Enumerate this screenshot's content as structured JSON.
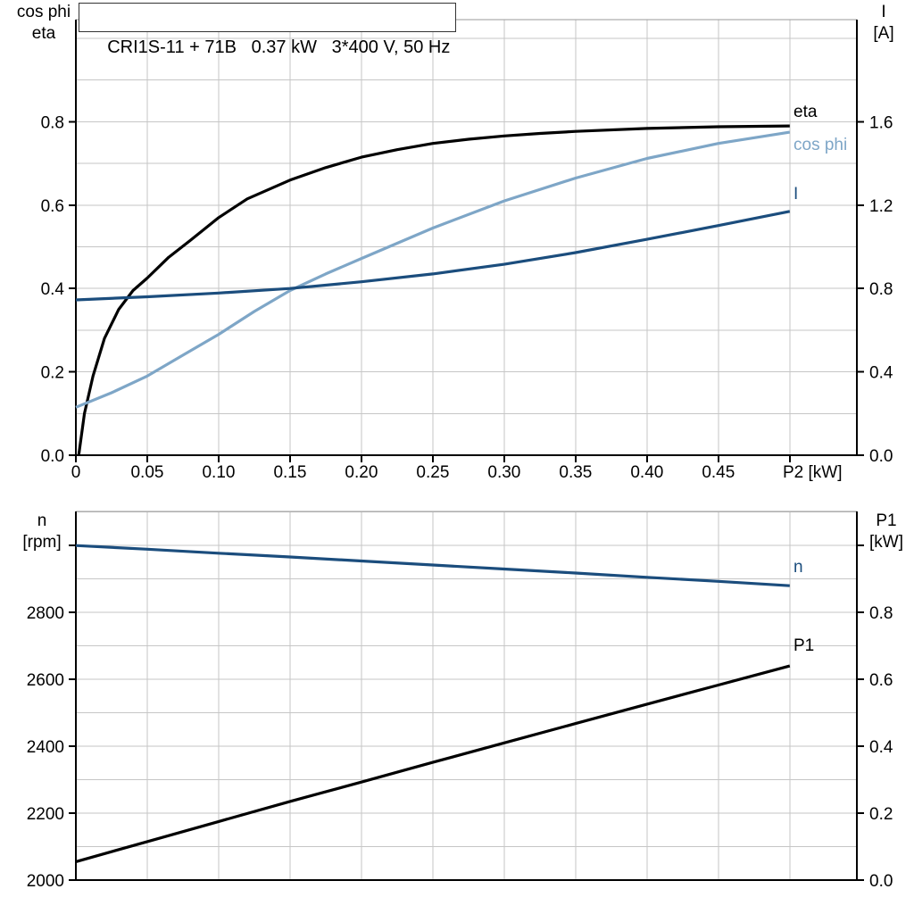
{
  "title": "CRI1S-11 + 71B   0.37 kW   3*400 V, 50 Hz",
  "colors": {
    "black": "#000000",
    "dark_blue": "#1b4d7d",
    "light_blue": "#7ea6c7",
    "grid": "#c6c6c6",
    "frame": "#999999"
  },
  "axis_headers": {
    "top_left": {
      "line1": "cos phi",
      "line2": "eta"
    },
    "top_right": {
      "line1": "I",
      "line2": "[A]"
    },
    "bottom_left": {
      "line1": "n",
      "line2": "[rpm]"
    },
    "bottom_right": {
      "line1": "P1",
      "line2": "[kW]"
    }
  },
  "chart_data": [
    {
      "type": "line",
      "name": "motor-electrical-curves",
      "title": "CRI1S-11 + 71B   0.37 kW   3*400 V, 50 Hz",
      "xlabel": "P2 [kW]",
      "x_axis": {
        "min": 0,
        "max": 0.547,
        "grid": true
      },
      "x_ticks": [
        {
          "v": 0.0,
          "label": "0"
        },
        {
          "v": 0.05,
          "label": "0.05"
        },
        {
          "v": 0.1,
          "label": "0.10"
        },
        {
          "v": 0.15,
          "label": "0.15"
        },
        {
          "v": 0.2,
          "label": "0.20"
        },
        {
          "v": 0.25,
          "label": "0.25"
        },
        {
          "v": 0.3,
          "label": "0.30"
        },
        {
          "v": 0.35,
          "label": "0.35"
        },
        {
          "v": 0.4,
          "label": "0.40"
        },
        {
          "v": 0.45,
          "label": "0.45"
        },
        {
          "v": 0.5,
          "label": ""
        }
      ],
      "left_axis": {
        "title": "cos phi / eta",
        "min": 0,
        "max": 1.045,
        "grid_step": 0.1,
        "grid_max": 1.0,
        "major_ticks": [
          {
            "v": 0.0,
            "label": "0.0"
          },
          {
            "v": 0.2,
            "label": "0.2"
          },
          {
            "v": 0.4,
            "label": "0.4"
          },
          {
            "v": 0.6,
            "label": "0.6"
          },
          {
            "v": 0.8,
            "label": "0.8"
          }
        ]
      },
      "right_axis": {
        "title": "I [A]",
        "min": 0,
        "max": 2.09,
        "major_ticks": [
          {
            "v": 0.0,
            "label": "0.0"
          },
          {
            "v": 0.4,
            "label": "0.4"
          },
          {
            "v": 0.8,
            "label": "0.8"
          },
          {
            "v": 1.2,
            "label": "1.2"
          },
          {
            "v": 1.6,
            "label": "1.6"
          }
        ]
      },
      "series": [
        {
          "name": "eta",
          "label": "eta",
          "axis": "left",
          "color_key": "black",
          "label_dy": -17,
          "points": [
            [
              0.002,
              0
            ],
            [
              0.006,
              0.1
            ],
            [
              0.012,
              0.19
            ],
            [
              0.02,
              0.28
            ],
            [
              0.03,
              0.35
            ],
            [
              0.04,
              0.395
            ],
            [
              0.05,
              0.425
            ],
            [
              0.065,
              0.475
            ],
            [
              0.08,
              0.515
            ],
            [
              0.1,
              0.57
            ],
            [
              0.12,
              0.615
            ],
            [
              0.15,
              0.66
            ],
            [
              0.175,
              0.69
            ],
            [
              0.2,
              0.715
            ],
            [
              0.225,
              0.733
            ],
            [
              0.25,
              0.748
            ],
            [
              0.275,
              0.758
            ],
            [
              0.3,
              0.766
            ],
            [
              0.325,
              0.772
            ],
            [
              0.35,
              0.777
            ],
            [
              0.4,
              0.784
            ],
            [
              0.45,
              0.788
            ],
            [
              0.5,
              0.79
            ]
          ]
        },
        {
          "name": "cos-phi",
          "label": "cos phi",
          "axis": "left",
          "color_key": "light_blue",
          "label_dy": 13,
          "points": [
            [
              0,
              0.115
            ],
            [
              0.025,
              0.15
            ],
            [
              0.05,
              0.19
            ],
            [
              0.075,
              0.24
            ],
            [
              0.1,
              0.29
            ],
            [
              0.125,
              0.345
            ],
            [
              0.15,
              0.395
            ],
            [
              0.175,
              0.435
            ],
            [
              0.2,
              0.472
            ],
            [
              0.25,
              0.545
            ],
            [
              0.3,
              0.61
            ],
            [
              0.35,
              0.665
            ],
            [
              0.4,
              0.712
            ],
            [
              0.45,
              0.748
            ],
            [
              0.5,
              0.775
            ]
          ]
        },
        {
          "name": "current",
          "label": "I",
          "axis": "right",
          "color_key": "dark_blue",
          "label_dy": -21,
          "points": [
            [
              0,
              0.745
            ],
            [
              0.05,
              0.76
            ],
            [
              0.1,
              0.778
            ],
            [
              0.15,
              0.8
            ],
            [
              0.2,
              0.832
            ],
            [
              0.25,
              0.87
            ],
            [
              0.3,
              0.916
            ],
            [
              0.35,
              0.972
            ],
            [
              0.4,
              1.036
            ],
            [
              0.45,
              1.102
            ],
            [
              0.5,
              1.17
            ]
          ]
        }
      ]
    },
    {
      "type": "line",
      "name": "speed-input-power-curves",
      "title": "",
      "xlabel": "",
      "x_axis": {
        "min": 0,
        "max": 0.547,
        "grid": true
      },
      "x_ticks": [
        {
          "v": 0.0,
          "label": ""
        },
        {
          "v": 0.05,
          "label": ""
        },
        {
          "v": 0.1,
          "label": ""
        },
        {
          "v": 0.15,
          "label": ""
        },
        {
          "v": 0.2,
          "label": ""
        },
        {
          "v": 0.25,
          "label": ""
        },
        {
          "v": 0.3,
          "label": ""
        },
        {
          "v": 0.35,
          "label": ""
        },
        {
          "v": 0.4,
          "label": ""
        },
        {
          "v": 0.45,
          "label": ""
        },
        {
          "v": 0.5,
          "label": ""
        }
      ],
      "left_axis": {
        "title": "n [rpm]",
        "min": 2000,
        "max": 3102,
        "grid_step": 100,
        "grid_max": 3100,
        "major_ticks": [
          {
            "v": 2000,
            "label": "2000"
          },
          {
            "v": 2200,
            "label": "2200"
          },
          {
            "v": 2400,
            "label": "2400"
          },
          {
            "v": 2600,
            "label": "2600"
          },
          {
            "v": 2800,
            "label": "2800"
          },
          {
            "v": 3000,
            "label": ""
          }
        ]
      },
      "right_axis": {
        "title": "P1 [kW]",
        "min": 0,
        "max": 1.102,
        "major_ticks": [
          {
            "v": 0.0,
            "label": "0.0"
          },
          {
            "v": 0.2,
            "label": "0.2"
          },
          {
            "v": 0.4,
            "label": "0.4"
          },
          {
            "v": 0.6,
            "label": "0.6"
          },
          {
            "v": 0.8,
            "label": "0.8"
          },
          {
            "v": 1.0,
            "label": ""
          }
        ]
      },
      "series": [
        {
          "name": "speed",
          "label": "n",
          "axis": "left",
          "color_key": "dark_blue",
          "label_dy": -22,
          "points": [
            [
              0,
              3000
            ],
            [
              0.05,
              2989
            ],
            [
              0.1,
              2977
            ],
            [
              0.15,
              2966
            ],
            [
              0.2,
              2954
            ],
            [
              0.25,
              2942
            ],
            [
              0.3,
              2930
            ],
            [
              0.35,
              2918
            ],
            [
              0.4,
              2905
            ],
            [
              0.45,
              2893
            ],
            [
              0.5,
              2880
            ]
          ]
        },
        {
          "name": "p1",
          "label": "P1",
          "axis": "right",
          "color_key": "black",
          "label_dy": -24,
          "points": [
            [
              0,
              0.055
            ],
            [
              0.05,
              0.115
            ],
            [
              0.1,
              0.175
            ],
            [
              0.15,
              0.235
            ],
            [
              0.2,
              0.293
            ],
            [
              0.25,
              0.352
            ],
            [
              0.3,
              0.41
            ],
            [
              0.35,
              0.468
            ],
            [
              0.4,
              0.526
            ],
            [
              0.45,
              0.583
            ],
            [
              0.5,
              0.64
            ]
          ]
        }
      ]
    }
  ]
}
